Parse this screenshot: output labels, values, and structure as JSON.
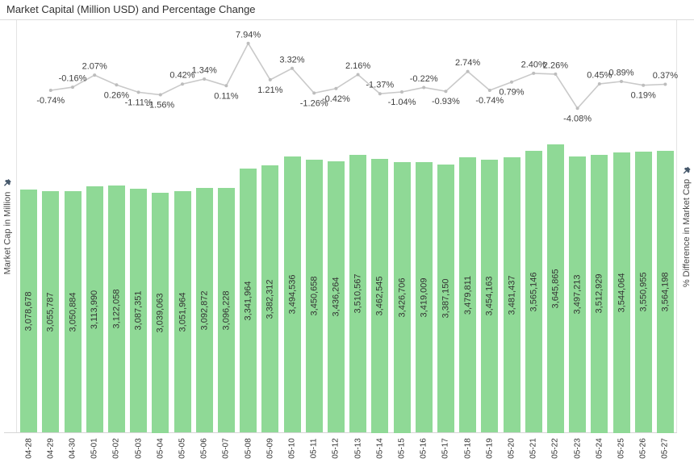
{
  "chart": {
    "title": "Market Capital (Million USD) and Percentage Change",
    "left_axis_label": "Market Cap in Million",
    "right_axis_label": "% Difference in Market Cap",
    "icons": {
      "left_axis_icon": "pushpin-icon",
      "right_axis_icon": "pushpin-icon"
    },
    "colors": {
      "bar_fill": "#8fd996",
      "line_stroke": "#c9c9c9",
      "marker_fill": "#bdbdbd",
      "label_text": "#333333",
      "title_text": "#323232",
      "pin_icon": "#47596c"
    }
  },
  "chart_data": {
    "type": "bar+line combo",
    "title": "Market Capital (Million USD) and Percentage Change",
    "ylabel_left": "Market Cap in Million",
    "ylabel_right": "% Difference in Market Cap",
    "grid": false,
    "legend": false,
    "categories": [
      "04-28",
      "04-29",
      "04-30",
      "05-01",
      "05-02",
      "05-03",
      "05-04",
      "05-05",
      "05-06",
      "05-07",
      "05-08",
      "05-09",
      "05-10",
      "05-11",
      "05-12",
      "05-13",
      "05-14",
      "05-15",
      "05-16",
      "05-17",
      "05-18",
      "05-19",
      "05-20",
      "05-21",
      "05-22",
      "05-23",
      "05-24",
      "05-25",
      "05-26",
      "05-27"
    ],
    "series": [
      {
        "name": "Market Cap in Million",
        "type": "bar",
        "axis": "left",
        "axis_range": [
          0,
          3700000
        ],
        "values": [
          3078678,
          3055787,
          3050884,
          3113990,
          3122058,
          3087351,
          3039063,
          3051964,
          3092872,
          3096228,
          3341964,
          3382312,
          3494536,
          3450658,
          3436264,
          3510567,
          3462545,
          3426706,
          3419009,
          3387150,
          3479811,
          3454163,
          3481437,
          3565146,
          3645865,
          3497213,
          3512929,
          3544064,
          3550955,
          3564198
        ],
        "labels": [
          "3,078,678",
          "3,055,787",
          "3,050,884",
          "3,113,990",
          "3,122,058",
          "3,087,351",
          "3,039,063",
          "3,051,964",
          "3,092,872",
          "3,096,228",
          "3,341,964",
          "3,382,312",
          "3,494,536",
          "3,450,658",
          "3,436,264",
          "3,510,567",
          "3,462,545",
          "3,426,706",
          "3,419,009",
          "3,387,150",
          "3,479,811",
          "3,454,163",
          "3,481,437",
          "3,565,146",
          "3,645,865",
          "3,497,213",
          "3,512,929",
          "3,544,064",
          "3,550,955",
          "3,564,198"
        ]
      },
      {
        "name": "% Difference in Market Cap",
        "type": "line",
        "axis": "right",
        "x": [
          "04-29",
          "04-30",
          "05-01",
          "05-02",
          "05-03",
          "05-04",
          "05-05",
          "05-06",
          "05-07",
          "05-08",
          "05-09",
          "05-10",
          "05-11",
          "05-12",
          "05-13",
          "05-14",
          "05-15",
          "05-16",
          "05-17",
          "05-18",
          "05-19",
          "05-20",
          "05-21",
          "05-22",
          "05-23",
          "05-24",
          "05-25",
          "05-26",
          "05-27"
        ],
        "values": [
          -0.74,
          -0.16,
          2.07,
          0.26,
          -1.11,
          -1.56,
          0.42,
          1.34,
          0.11,
          7.94,
          1.21,
          3.32,
          -1.26,
          -0.42,
          2.16,
          -1.37,
          -1.04,
          -0.22,
          -0.93,
          2.74,
          -0.74,
          0.79,
          2.4,
          2.26,
          -4.08,
          0.45,
          0.89,
          0.19,
          0.37
        ],
        "labels": [
          "-0.74%",
          "-0.16%",
          "2.07%",
          "0.26%",
          "-1.11%",
          "-1.56%",
          "0.42%",
          "1.34%",
          "0.11%",
          "7.94%",
          "1.21%",
          "3.32%",
          "-1.26%",
          "-0.42%",
          "2.16%",
          "-1.37%",
          "-1.04%",
          "-0.22%",
          "-0.93%",
          "2.74%",
          "-0.74%",
          "0.79%",
          "2.40%",
          "2.26%",
          "-4.08%",
          "0.45%",
          "0.89%",
          "0.19%",
          "0.37%"
        ],
        "label_positions": [
          "below",
          "above",
          "above",
          "below",
          "below",
          "below",
          "above",
          "above",
          "below",
          "above",
          "below",
          "above",
          "below",
          "below",
          "above",
          "above",
          "below",
          "above",
          "below",
          "above",
          "below",
          "below",
          "above",
          "above",
          "below",
          "above",
          "above",
          "below",
          "above"
        ]
      }
    ]
  }
}
